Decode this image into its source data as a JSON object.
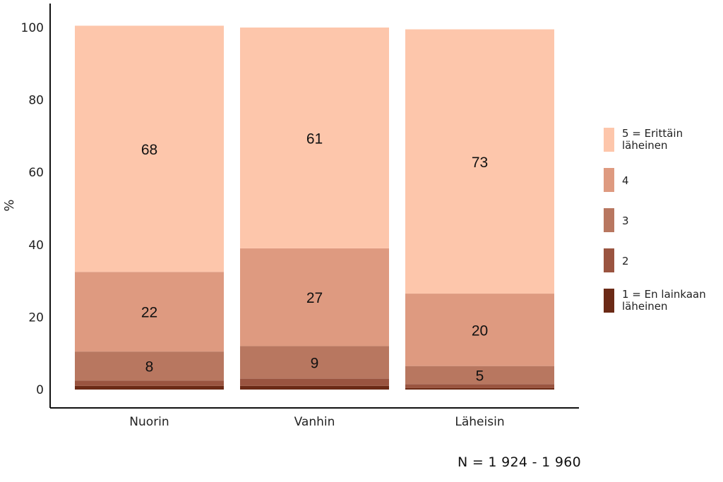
{
  "chart_data": {
    "type": "bar",
    "stacked": true,
    "categories": [
      "Nuorin",
      "Vanhin",
      "Läheisin"
    ],
    "ylabel": "%",
    "xlabel": "",
    "ylim": [
      0,
      100
    ],
    "yticks": [
      0,
      20,
      40,
      60,
      80,
      100
    ],
    "series": [
      {
        "name": "1 = En lainkaan läheinen",
        "color": "#6b2a16",
        "values": [
          1,
          1,
          0.4
        ]
      },
      {
        "name": "2",
        "color": "#9a5440",
        "values": [
          1.5,
          2,
          1.1
        ]
      },
      {
        "name": "3",
        "color": "#b87760",
        "values": [
          8,
          9,
          5
        ]
      },
      {
        "name": "4",
        "color": "#de9a80",
        "values": [
          22,
          27,
          20
        ]
      },
      {
        "name": "5 = Erittäin läheinen",
        "color": "#fdc6ab",
        "values": [
          68,
          61,
          73
        ]
      }
    ],
    "data_labels": {
      "1 = En lainkaan läheinen": [
        null,
        null,
        null
      ],
      "2": [
        null,
        null,
        null
      ],
      "3": [
        "8",
        "9",
        "5"
      ],
      "4": [
        "22",
        "27",
        "20"
      ],
      "5 = Erittäin läheinen": [
        "68",
        "61",
        "73"
      ]
    },
    "legend": {
      "position": "right",
      "order": [
        "5 = Erittäin läheinen",
        "4",
        "3",
        "2",
        "1 = En lainkaan läheinen"
      ],
      "labels_wrapped": {
        "5 = Erittäin läheinen": [
          "5 = Erittäin",
          "läheinen"
        ],
        "4": [
          "4"
        ],
        "3": [
          "3"
        ],
        "2": [
          "2"
        ],
        "1 = En lainkaan läheinen": [
          "1 = En lainkaan",
          "läheinen"
        ]
      }
    },
    "grid": false
  },
  "note": "N = 1 924 - 1 960"
}
